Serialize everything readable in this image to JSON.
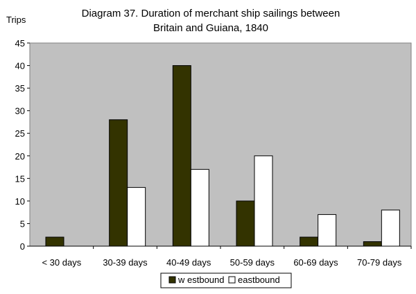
{
  "chart_data": {
    "type": "bar",
    "title": "Diagram 37. Duration of merchant ship sailings between Britain and Guiana, 1840",
    "title_lines": [
      "Diagram 37. Duration of merchant ship sailings between",
      "Britain and Guiana, 1840"
    ],
    "ylabel": "Trips",
    "xlabel": "",
    "ylim": [
      0,
      45
    ],
    "yticks": [
      0,
      5,
      10,
      15,
      20,
      25,
      30,
      35,
      40,
      45
    ],
    "grid": "off",
    "legend_position": "bottom",
    "plot_background": "#c0c0c0",
    "categories": [
      "< 30 days",
      "30-39 days",
      "40-49 days",
      "50-59 days",
      "60-69 days",
      "70-79 days"
    ],
    "series": [
      {
        "name": "w estbound",
        "color": "#333300",
        "values": [
          2,
          28,
          40,
          10,
          2,
          1
        ]
      },
      {
        "name": "eastbound",
        "color": "#ffffff",
        "values": [
          0,
          13,
          17,
          20,
          7,
          8
        ]
      }
    ]
  }
}
